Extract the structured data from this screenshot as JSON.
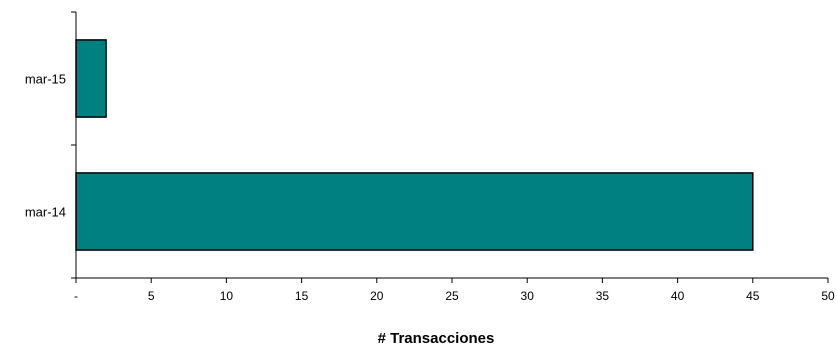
{
  "chart_data": {
    "type": "bar",
    "orientation": "horizontal",
    "categories": [
      "mar-15",
      "mar-14"
    ],
    "values": [
      2,
      45
    ],
    "xlabel": "# Transacciones",
    "ylabel": "",
    "xlim": [
      0,
      50
    ],
    "x_ticks": [
      0,
      5,
      10,
      15,
      20,
      25,
      30,
      35,
      40,
      45,
      50
    ],
    "x_tick_labels": [
      "-",
      "5",
      "10",
      "15",
      "20",
      "25",
      "30",
      "35",
      "40",
      "45",
      "50"
    ],
    "bar_color": "#008080",
    "bar_edge_color": "#000000",
    "grid": false,
    "legend": "none"
  }
}
